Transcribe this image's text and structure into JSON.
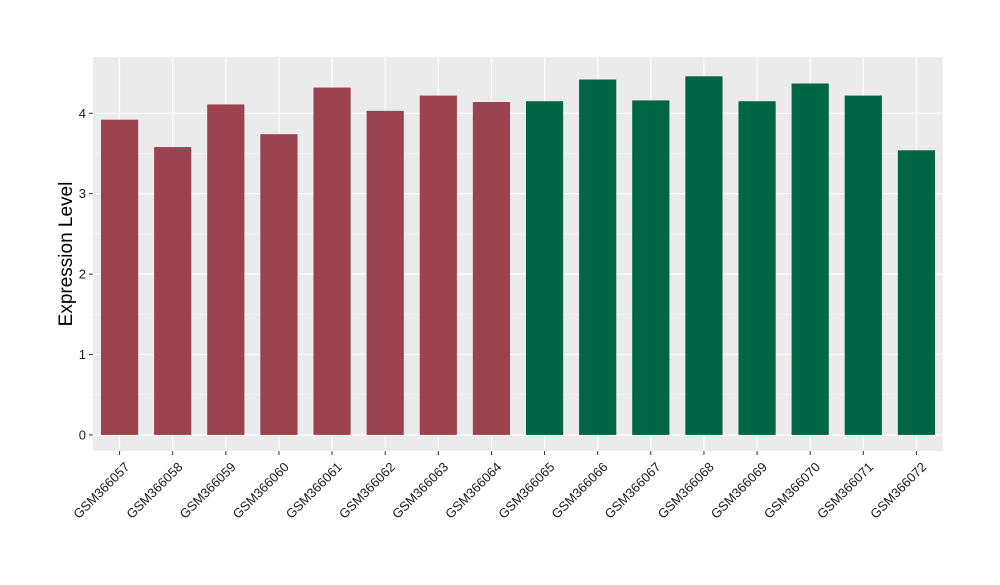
{
  "chart_data": {
    "type": "bar",
    "ylabel": "Expression Level",
    "xlabel": "",
    "ylim": [
      -0.2,
      4.7
    ],
    "yticks": [
      0,
      1,
      2,
      3,
      4
    ],
    "grid": true,
    "background": "#EBEBEB",
    "categories": [
      "GSM366057",
      "GSM366058",
      "GSM366059",
      "GSM366060",
      "GSM366061",
      "GSM366062",
      "GSM366063",
      "GSM366064",
      "GSM366065",
      "GSM366066",
      "GSM366067",
      "GSM366068",
      "GSM366069",
      "GSM366070",
      "GSM366071",
      "GSM366072"
    ],
    "values": [
      3.92,
      3.58,
      4.11,
      3.74,
      4.32,
      4.03,
      4.22,
      4.14,
      4.15,
      4.42,
      4.16,
      4.46,
      4.15,
      4.37,
      4.22,
      3.54
    ],
    "colors": [
      "#9A4250",
      "#9A4250",
      "#9A4250",
      "#9A4250",
      "#9A4250",
      "#9A4250",
      "#9A4250",
      "#9A4250",
      "#006544",
      "#006544",
      "#006544",
      "#006544",
      "#006544",
      "#006544",
      "#006544",
      "#006544"
    ]
  }
}
